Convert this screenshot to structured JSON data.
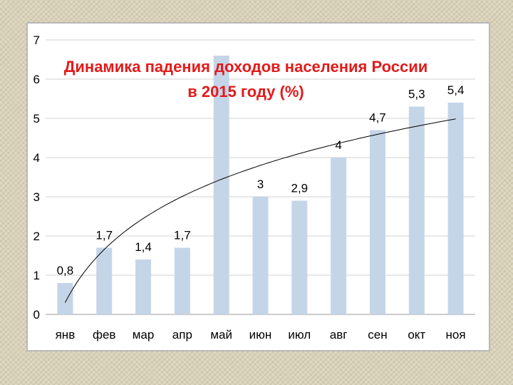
{
  "chart_data": {
    "type": "bar",
    "title": "Динамика падения доходов населения России",
    "subtitle": "в 2015 году (%)",
    "categories": [
      "янв",
      "фев",
      "мар",
      "апр",
      "май",
      "июн",
      "июл",
      "авг",
      "сен",
      "окт",
      "ноя"
    ],
    "values": [
      0.8,
      1.7,
      1.4,
      1.7,
      6.6,
      3.0,
      2.9,
      4.0,
      4.7,
      5.3,
      5.4
    ],
    "data_labels": [
      "0,8",
      "1,7",
      "1,4",
      "1,7",
      "",
      "3",
      "2,9",
      "4",
      "4,7",
      "5,3",
      "5,4"
    ],
    "ylim": [
      0,
      7
    ],
    "yticks": [
      "0",
      "1",
      "2",
      "3",
      "4",
      "5",
      "6",
      "7"
    ],
    "trendline": true,
    "grid": true,
    "colors": {
      "bar": "#c5d5e8",
      "title": "#e31b1b",
      "grid": "#d0d0d0",
      "trend": "#000000",
      "text": "#000000"
    }
  }
}
